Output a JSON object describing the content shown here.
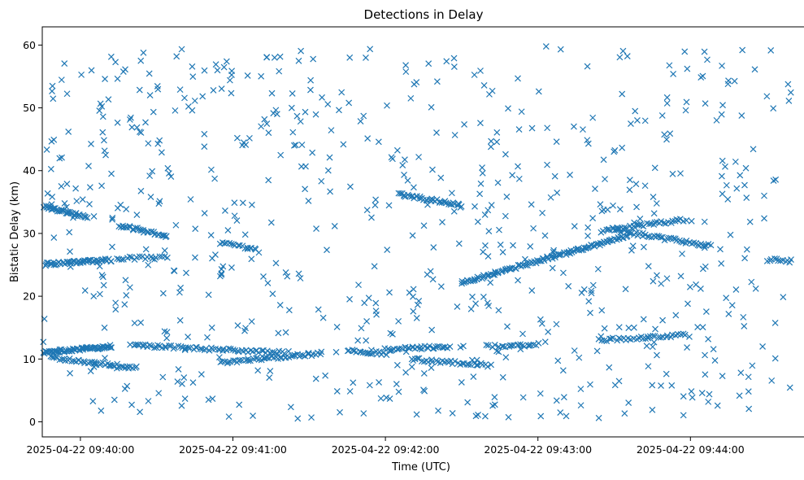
{
  "chart_data": {
    "type": "scatter",
    "title": "Detections in Delay",
    "xlabel": "Time (UTC)",
    "ylabel": "Bistatic Delay (km)",
    "x_is_time": true,
    "x_ticks": [
      "2025-04-22 09:40:00",
      "2025-04-22 09:41:00",
      "2025-04-22 09:42:00",
      "2025-04-22 09:43:00",
      "2025-04-22 09:44:00"
    ],
    "y_ticks": [
      0,
      10,
      20,
      30,
      40,
      50,
      60
    ],
    "xlim": [
      "2025-04-22 09:39:45",
      "2025-04-22 09:44:45"
    ],
    "ylim": [
      -2.4,
      62.9
    ],
    "marker": "x",
    "color": "#1f77b4",
    "grid": false,
    "tracks": [
      {
        "x_start": "2025-04-22 09:39:43",
        "x_end": "2025-04-22 09:40:12",
        "y_start": 25.0,
        "y_end": 25.8,
        "points": 60
      },
      {
        "x_start": "2025-04-22 09:39:43",
        "x_end": "2025-04-22 09:40:12",
        "y_start": 11.0,
        "y_end": 12.0,
        "points": 70
      },
      {
        "x_start": "2025-04-22 09:39:45",
        "x_end": "2025-04-22 09:40:02",
        "y_start": 34.4,
        "y_end": 32.6,
        "points": 40
      },
      {
        "x_start": "2025-04-22 09:39:48",
        "x_end": "2025-04-22 09:40:22",
        "y_start": 10.3,
        "y_end": 8.6,
        "points": 45
      },
      {
        "x_start": "2025-04-22 09:40:16",
        "x_end": "2025-04-22 09:40:34",
        "y_start": 31.2,
        "y_end": 29.6,
        "points": 30
      },
      {
        "x_start": "2025-04-22 09:40:14",
        "x_end": "2025-04-22 09:40:34",
        "y_start": 26.0,
        "y_end": 26.2,
        "points": 20
      },
      {
        "x_start": "2025-04-22 09:40:20",
        "x_end": "2025-04-22 09:41:20",
        "y_start": 12.2,
        "y_end": 11.0,
        "points": 70
      },
      {
        "x_start": "2025-04-22 09:40:55",
        "x_end": "2025-04-22 09:41:35",
        "y_start": 9.4,
        "y_end": 10.9,
        "points": 50
      },
      {
        "x_start": "2025-04-22 09:40:55",
        "x_end": "2025-04-22 09:41:10",
        "y_start": 28.6,
        "y_end": 27.2,
        "points": 18
      },
      {
        "x_start": "2025-04-22 09:41:45",
        "x_end": "2025-04-22 09:42:00",
        "y_start": 11.3,
        "y_end": 10.9,
        "points": 20
      },
      {
        "x_start": "2025-04-22 09:42:00",
        "x_end": "2025-04-22 09:42:25",
        "y_start": 11.5,
        "y_end": 12.0,
        "points": 35
      },
      {
        "x_start": "2025-04-22 09:42:05",
        "x_end": "2025-04-22 09:42:30",
        "y_start": 36.3,
        "y_end": 34.5,
        "points": 40
      },
      {
        "x_start": "2025-04-22 09:42:10",
        "x_end": "2025-04-22 09:42:40",
        "y_start": 10.0,
        "y_end": 9.0,
        "points": 35
      },
      {
        "x_start": "2025-04-22 09:42:30",
        "x_end": "2025-04-22 09:43:35",
        "y_start": 22.2,
        "y_end": 29.6,
        "points": 120
      },
      {
        "x_start": "2025-04-22 09:42:40",
        "x_end": "2025-04-22 09:43:00",
        "y_start": 12.0,
        "y_end": 12.3,
        "points": 25
      },
      {
        "x_start": "2025-04-22 09:43:25",
        "x_end": "2025-04-22 09:43:58",
        "y_start": 30.4,
        "y_end": 32.2,
        "points": 40
      },
      {
        "x_start": "2025-04-22 09:43:30",
        "x_end": "2025-04-22 09:44:08",
        "y_start": 30.5,
        "y_end": 28.0,
        "points": 50
      },
      {
        "x_start": "2025-04-22 09:43:25",
        "x_end": "2025-04-22 09:43:58",
        "y_start": 13.0,
        "y_end": 13.8,
        "points": 35
      },
      {
        "x_start": "2025-04-22 09:44:30",
        "x_end": "2025-04-22 09:44:40",
        "y_start": 25.8,
        "y_end": 25.6,
        "points": 12
      }
    ],
    "noise": {
      "count": 720,
      "x_range": [
        "2025-04-22 09:39:43",
        "2025-04-22 09:44:40"
      ],
      "y_range": [
        0.5,
        60
      ]
    }
  }
}
